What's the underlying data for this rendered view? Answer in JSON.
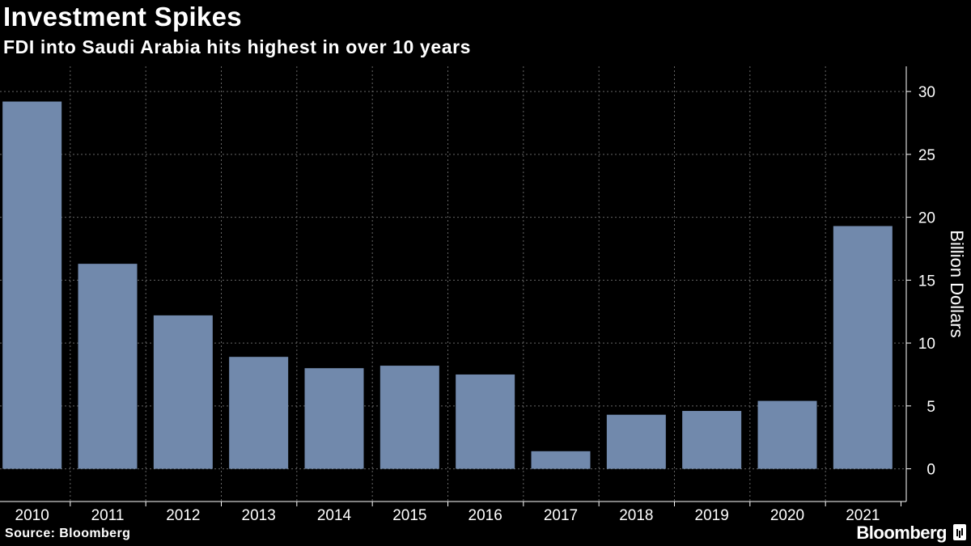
{
  "header": {
    "title": "Investment Spikes",
    "subtitle": "FDI into Saudi Arabia hits highest in over 10 years"
  },
  "footer": {
    "source": "Source: Bloomberg",
    "brand": "Bloomberg"
  },
  "colors": {
    "background": "#000000",
    "bar": "#7189ac",
    "grid": "#666666",
    "text": "#ffffff"
  },
  "chart_data": {
    "type": "bar",
    "title": "Investment Spikes",
    "subtitle": "FDI into Saudi Arabia hits highest in over 10 years",
    "categories": [
      "2010",
      "2011",
      "2012",
      "2013",
      "2014",
      "2015",
      "2016",
      "2017",
      "2018",
      "2019",
      "2020",
      "2021"
    ],
    "values": [
      29.2,
      16.3,
      12.2,
      8.9,
      8.0,
      8.2,
      7.5,
      1.4,
      4.3,
      4.6,
      5.4,
      19.3
    ],
    "xlabel": "",
    "ylabel": "Billion Dollars",
    "ylim": [
      -2.6,
      32
    ],
    "yticks": [
      0,
      5,
      10,
      15,
      20,
      25,
      30
    ],
    "y_axis_side": "right",
    "grid": true
  }
}
